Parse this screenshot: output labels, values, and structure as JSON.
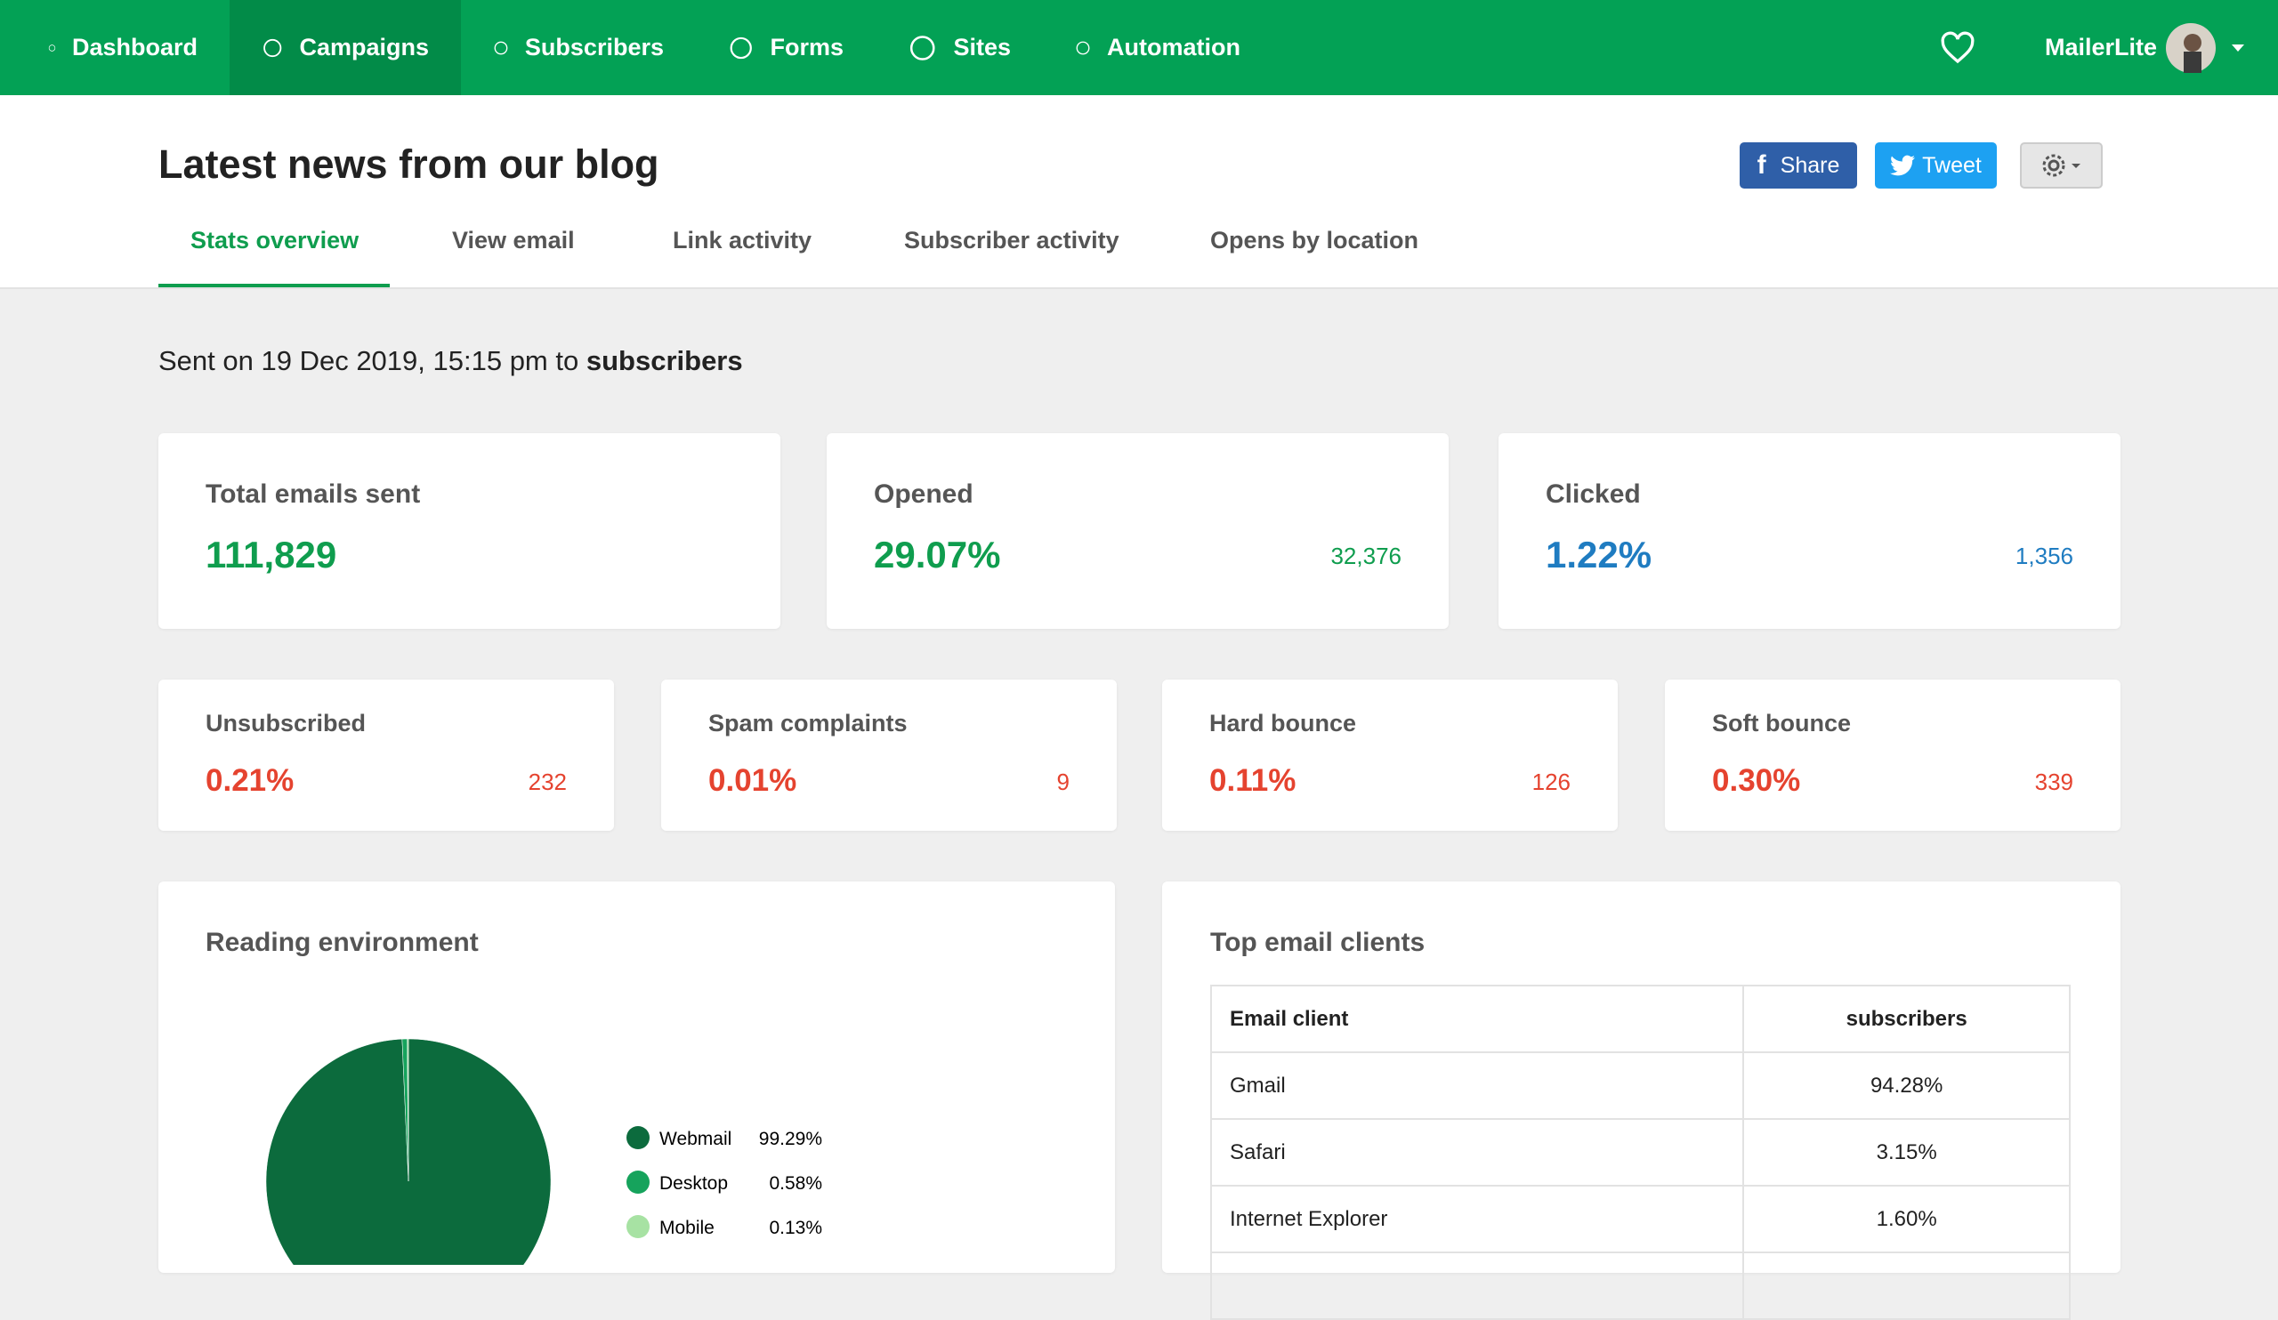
{
  "nav": {
    "items": [
      "Dashboard",
      "Campaigns",
      "Subscribers",
      "Forms",
      "Sites",
      "Automation"
    ],
    "active": "Campaigns",
    "account": "MailerLite"
  },
  "header": {
    "title": "Latest news from our blog",
    "share": "Share",
    "tweet": "Tweet"
  },
  "tabs": {
    "items": [
      "Stats overview",
      "View email",
      "Link activity",
      "Subscriber activity",
      "Opens by location"
    ],
    "active": "Stats overview"
  },
  "sent": {
    "prefix": "Sent on 19 Dec 2019, 15:15 pm to",
    "audience": "subscribers"
  },
  "stats_main": [
    {
      "label": "Total emails sent",
      "value": "111,829",
      "color": "#0f9d4e"
    },
    {
      "label": "Opened",
      "value": "29.07%",
      "count": "32,376",
      "color": "#0f9d4e"
    },
    {
      "label": "Clicked",
      "value": "1.22%",
      "count": "1,356",
      "color": "#1f7cc1"
    }
  ],
  "stats_small": [
    {
      "label": "Unsubscribed",
      "value": "0.21%",
      "count": "232",
      "color": "#e5432f"
    },
    {
      "label": "Spam complaints",
      "value": "0.01%",
      "count": "9",
      "color": "#e5432f"
    },
    {
      "label": "Hard bounce",
      "value": "0.11%",
      "count": "126",
      "color": "#e5432f"
    },
    {
      "label": "Soft bounce",
      "value": "0.30%",
      "count": "339",
      "color": "#e5432f"
    }
  ],
  "reading_environment": {
    "type": "pie",
    "title": "Reading environment",
    "categories": [
      "Webmail",
      "Desktop",
      "Mobile"
    ],
    "values": [
      99.29,
      0.58,
      0.13
    ],
    "value_labels": [
      "99.29%",
      "0.58%",
      "0.13%"
    ],
    "colors": [
      "#0c6b3d",
      "#16a35c",
      "#a7e2a3"
    ]
  },
  "email_clients": {
    "title": "Top email clients",
    "columns": [
      "Email client",
      "subscribers"
    ],
    "rows": [
      [
        "Gmail",
        "94.28%"
      ],
      [
        "Safari",
        "3.15%"
      ],
      [
        "Internet Explorer",
        "1.60%"
      ]
    ]
  }
}
